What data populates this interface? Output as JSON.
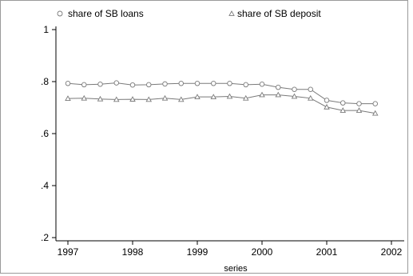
{
  "chart_data": {
    "type": "line",
    "xlabel": "series",
    "ylabel": "",
    "xlim": [
      1997,
      2002
    ],
    "ylim": [
      0.2,
      1.0
    ],
    "grid": false,
    "legend": "top",
    "x_ticks": [
      {
        "value": 1997,
        "label": "1997"
      },
      {
        "value": 1998,
        "label": "1998"
      },
      {
        "value": 1999,
        "label": "1999"
      },
      {
        "value": 2000,
        "label": "2000"
      },
      {
        "value": 2001,
        "label": "2001"
      },
      {
        "value": 2002,
        "label": "2002"
      }
    ],
    "y_ticks": [
      {
        "value": 0.2,
        "label": ".2"
      },
      {
        "value": 0.4,
        "label": ".4"
      },
      {
        "value": 0.6,
        "label": ".6"
      },
      {
        "value": 0.8,
        "label": ".8"
      },
      {
        "value": 1.0,
        "label": "1"
      }
    ],
    "x": [
      1997.0,
      1997.25,
      1997.5,
      1997.75,
      1998.0,
      1998.25,
      1998.5,
      1998.75,
      1999.0,
      1999.25,
      1999.5,
      1999.75,
      2000.0,
      2000.25,
      2000.5,
      2000.75,
      2001.0,
      2001.25,
      2001.5,
      2001.75
    ],
    "series": [
      {
        "name": "share of SB loans",
        "marker": "circle",
        "color": "#7a7a7a",
        "values": [
          0.793,
          0.788,
          0.79,
          0.795,
          0.787,
          0.788,
          0.791,
          0.793,
          0.793,
          0.793,
          0.793,
          0.788,
          0.79,
          0.778,
          0.77,
          0.77,
          0.728,
          0.718,
          0.715,
          0.715
        ]
      },
      {
        "name": "share of SB deposit",
        "marker": "triangle",
        "color": "#7a7a7a",
        "values": [
          0.735,
          0.736,
          0.733,
          0.731,
          0.732,
          0.731,
          0.736,
          0.731,
          0.741,
          0.741,
          0.743,
          0.736,
          0.749,
          0.749,
          0.743,
          0.736,
          0.702,
          0.689,
          0.689,
          0.678
        ]
      }
    ]
  }
}
